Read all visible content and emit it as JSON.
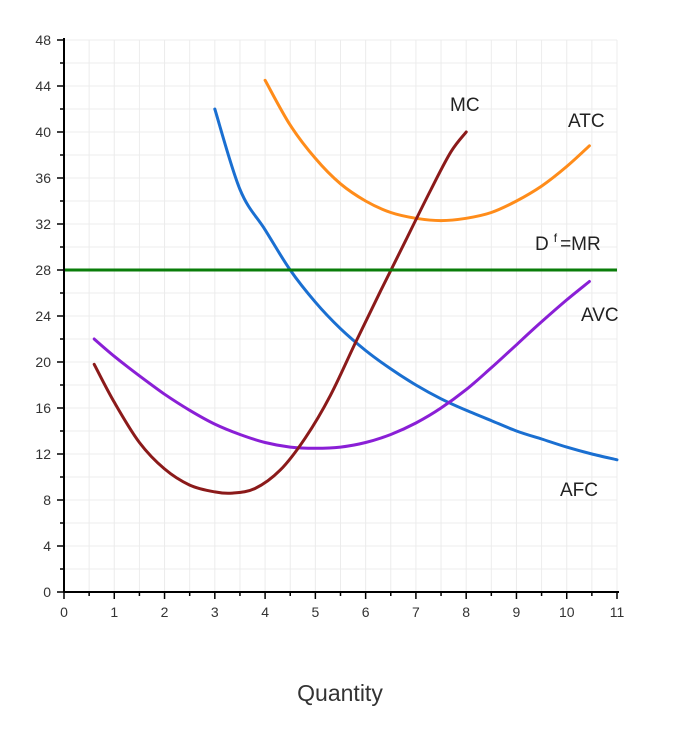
{
  "chart_data": {
    "type": "line",
    "title": "",
    "xlabel": "Quantity",
    "ylabel": "",
    "xlim": [
      0,
      11
    ],
    "ylim": [
      0,
      48
    ],
    "x_ticks": [
      0,
      1,
      2,
      3,
      4,
      5,
      6,
      7,
      8,
      9,
      10,
      11
    ],
    "y_ticks": [
      0,
      4,
      8,
      12,
      16,
      20,
      24,
      28,
      32,
      36,
      40,
      44,
      48
    ],
    "grid": true,
    "colors": {
      "MC": "#8b1a1a",
      "ATC": "#ff8c1a",
      "AFC": "#1a6fd1",
      "AVC": "#8a1fd6",
      "DMR": "#0a7d0a",
      "grid": "#ececec",
      "axis": "#000000"
    },
    "series": [
      {
        "name": "MC",
        "label": "MC",
        "x": [
          0.6,
          1.0,
          1.5,
          2.0,
          2.5,
          3.0,
          3.35,
          3.8,
          4.3,
          4.8,
          5.3,
          5.8,
          6.3,
          6.8,
          7.3,
          7.7,
          8.0
        ],
        "y": [
          19.8,
          16.5,
          13.0,
          10.7,
          9.3,
          8.7,
          8.6,
          9.0,
          10.6,
          13.4,
          17.1,
          21.7,
          26.2,
          30.6,
          35.0,
          38.3,
          40.0
        ]
      },
      {
        "name": "ATC",
        "label": "ATC",
        "x": [
          4.0,
          4.5,
          5.0,
          5.5,
          6.0,
          6.5,
          7.0,
          7.5,
          8.0,
          8.5,
          9.0,
          9.5,
          10.0,
          10.45
        ],
        "y": [
          44.5,
          40.6,
          37.7,
          35.5,
          34.0,
          33.0,
          32.5,
          32.3,
          32.5,
          33.0,
          34.0,
          35.3,
          37.0,
          38.8
        ]
      },
      {
        "name": "AFC",
        "label": "AFC",
        "x": [
          3.0,
          3.5,
          4.0,
          4.5,
          5.0,
          5.5,
          6.0,
          6.5,
          7.0,
          7.5,
          8.0,
          8.5,
          9.0,
          9.5,
          10.0,
          10.5,
          11.0
        ],
        "y": [
          42.0,
          35.0,
          31.5,
          28.0,
          25.2,
          22.9,
          21.0,
          19.4,
          18.0,
          16.8,
          15.8,
          14.9,
          14.0,
          13.3,
          12.6,
          12.0,
          11.5
        ]
      },
      {
        "name": "AVC",
        "label": "AVC",
        "x": [
          0.6,
          1.0,
          1.5,
          2.0,
          2.5,
          3.0,
          3.5,
          4.0,
          4.5,
          5.0,
          5.5,
          6.0,
          6.5,
          7.0,
          7.5,
          8.0,
          8.5,
          9.0,
          9.5,
          10.0,
          10.45
        ],
        "y": [
          22.0,
          20.5,
          18.8,
          17.2,
          15.8,
          14.6,
          13.7,
          13.0,
          12.6,
          12.5,
          12.6,
          13.0,
          13.7,
          14.7,
          16.0,
          17.6,
          19.5,
          21.5,
          23.5,
          25.4,
          27.0
        ]
      },
      {
        "name": "D=MR",
        "label": "D f =MR",
        "x": [
          0,
          11
        ],
        "y": [
          28,
          28
        ]
      }
    ],
    "labels": {
      "mc": "MC",
      "atc": "ATC",
      "afc": "AFC",
      "avc": "AVC",
      "demand_main": "D",
      "demand_sup": "f",
      "demand_rest": "=MR"
    }
  }
}
